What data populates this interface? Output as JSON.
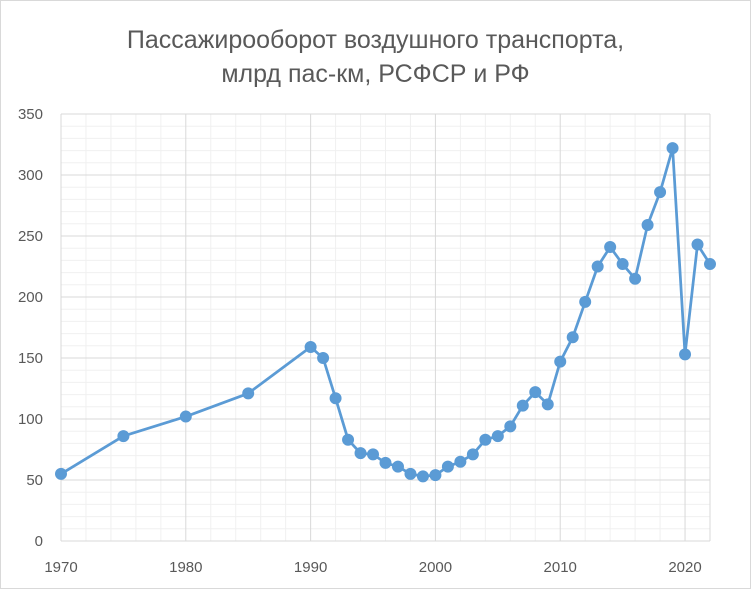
{
  "chart_data": {
    "type": "line",
    "title_lines": [
      "Пассажирооборот воздушного транспорта,",
      "млрд пас-км, РСФСР и РФ"
    ],
    "title": "Пассажирооборот воздушного транспорта, млрд пас-км, РСФСР и РФ",
    "xlabel": "",
    "ylabel": "",
    "xlim": [
      1970,
      2022
    ],
    "ylim": [
      0,
      350
    ],
    "x_ticks": [
      "1970",
      "1980",
      "1990",
      "2000",
      "2010",
      "2020"
    ],
    "y_ticks": [
      "0",
      "50",
      "100",
      "150",
      "200",
      "250",
      "300",
      "350"
    ],
    "grid": "on",
    "legend": "none",
    "series": [
      {
        "color": "#5b9bd5",
        "x": [
          1970,
          1975,
          1980,
          1985,
          1990,
          1991,
          1992,
          1993,
          1994,
          1995,
          1996,
          1997,
          1998,
          1999,
          2000,
          2001,
          2002,
          2003,
          2004,
          2005,
          2006,
          2007,
          2008,
          2009,
          2010,
          2011,
          2012,
          2013,
          2014,
          2015,
          2016,
          2017,
          2018,
          2019,
          2020,
          2021,
          2022
        ],
        "y": [
          55,
          86,
          102,
          121,
          159,
          150,
          117,
          83,
          72,
          71,
          64,
          61,
          55,
          53,
          54,
          61,
          65,
          71,
          83,
          86,
          94,
          111,
          122,
          112,
          147,
          167,
          196,
          225,
          241,
          227,
          215,
          259,
          286,
          322,
          153,
          243,
          227
        ]
      }
    ]
  }
}
